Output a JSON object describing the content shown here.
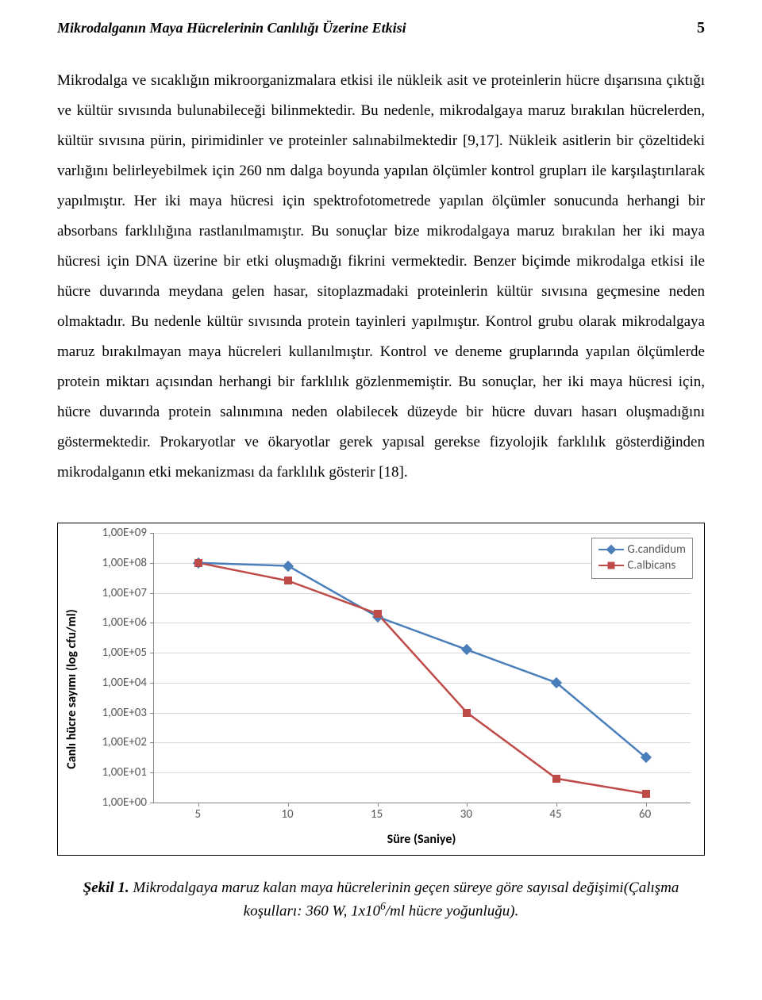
{
  "header": {
    "running_title": "Mikrodalganın Maya Hücrelerinin Canlılığı Üzerine Etkisi",
    "page_number": "5"
  },
  "paragraph": "Mikrodalga ve sıcaklığın mikroorganizmalara etkisi ile nükleik asit ve proteinlerin hücre dışarısına çıktığı ve kültür sıvısında bulunabileceği bilinmektedir. Bu nedenle, mikrodalgaya maruz bırakılan hücrelerden, kültür sıvısına pürin, pirimidinler ve proteinler salınabilmektedir [9,17]. Nükleik asitlerin bir çözeltideki varlığını belirleyebilmek için 260 nm dalga boyunda yapılan ölçümler kontrol grupları ile karşılaştırılarak yapılmıştır. Her iki maya hücresi için spektrofotometrede yapılan ölçümler sonucunda herhangi bir absorbans farklılığına rastlanılmamıştır. Bu sonuçlar bize mikrodalgaya maruz bırakılan her iki maya hücresi için DNA üzerine bir etki oluşmadığı fikrini vermektedir. Benzer biçimde mikrodalga etkisi ile hücre duvarında meydana gelen hasar, sitoplazmadaki proteinlerin kültür sıvısına geçmesine neden olmaktadır. Bu nedenle kültür sıvısında protein tayinleri yapılmıştır. Kontrol grubu olarak mikrodalgaya maruz bırakılmayan maya hücreleri kullanılmıştır. Kontrol ve deneme gruplarında yapılan ölçümlerde protein miktarı açısından herhangi bir farklılık gözlenmemiştir. Bu sonuçlar, her iki maya hücresi için, hücre duvarında protein salınımına neden olabilecek düzeyde bir hücre duvarı hasarı oluşmadığını göstermektedir. Prokaryotlar ve ökaryotlar gerek yapısal gerekse fizyolojik farklılık gösterdiğinden mikrodalganın etki mekanizması da farklılık gösterir [18].",
  "chart": {
    "type": "line",
    "x_label": "Süre (Saniye)",
    "y_label": "Canlı hücre sayımı (log cfu/ml)",
    "x_categories": [
      "5",
      "10",
      "15",
      "30",
      "45",
      "60"
    ],
    "y_tick_labels": [
      "1,00E+00",
      "1,00E+01",
      "1,00E+02",
      "1,00E+03",
      "1,00E+04",
      "1,00E+05",
      "1,00E+06",
      "1,00E+07",
      "1,00E+08",
      "1,00E+09"
    ],
    "y_log_exponents": [
      0,
      1,
      2,
      3,
      4,
      5,
      6,
      7,
      8,
      9
    ],
    "grid_color": "#d9d9d9",
    "axis_color": "#868686",
    "background_color": "#ffffff",
    "tick_fontsize": 15,
    "axis_title_fontsize": 16,
    "line_width": 2.5,
    "marker_size": 10,
    "series": [
      {
        "name": "G.candidum",
        "color": "#4a7ebb",
        "marker": "diamond",
        "y_exp": [
          8.0,
          7.9,
          6.2,
          5.1,
          4.0,
          1.5
        ]
      },
      {
        "name": "C.albicans",
        "color": "#be4b48",
        "marker": "square",
        "y_exp": [
          8.0,
          7.4,
          6.3,
          3.0,
          0.8,
          0.3
        ]
      }
    ],
    "legend": {
      "items": [
        "G.candidum",
        "C.albicans"
      ]
    }
  },
  "caption": {
    "label": "Şekil 1.",
    "text_1": " Mikrodalgaya maruz kalan maya hücrelerinin geçen süreye göre sayısal değişimi(Çalışma koşulları: 360 W, 1x10",
    "sup": "6",
    "text_2": "/ml hücre yoğunluğu)."
  }
}
